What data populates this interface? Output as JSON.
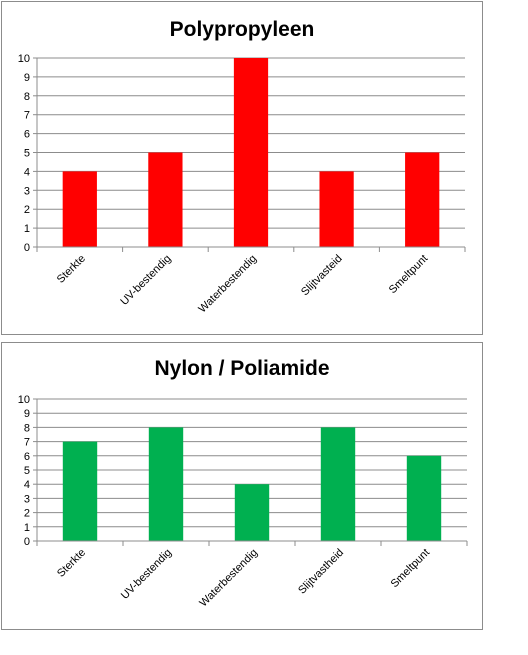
{
  "chart_data": [
    {
      "type": "bar",
      "title": "Polypropyleen",
      "categories": [
        "Sterkte",
        "UV-bestendig",
        "Waterbestendig",
        "Slijtvasteid",
        "Smeltpunt"
      ],
      "values": [
        4,
        5,
        10,
        4,
        5
      ],
      "yticks": [
        "0",
        "1",
        "2",
        "3",
        "4",
        "5",
        "6",
        "7",
        "8",
        "9",
        "10"
      ],
      "ylim": [
        0,
        10
      ],
      "color": "#ff0000",
      "grid": true,
      "legend": false
    },
    {
      "type": "bar",
      "title": "Nylon / Poliamide",
      "categories": [
        "Sterkte",
        "UV-bestendig",
        "Waterbestendig",
        "Slijtvastheid",
        "Smeltpunt"
      ],
      "values": [
        7,
        8,
        4,
        8,
        6
      ],
      "yticks": [
        "0",
        "1",
        "2",
        "3",
        "4",
        "5",
        "6",
        "7",
        "8",
        "9",
        "10"
      ],
      "ylim": [
        0,
        10
      ],
      "color": "#00b050",
      "grid": true,
      "legend": false
    }
  ]
}
